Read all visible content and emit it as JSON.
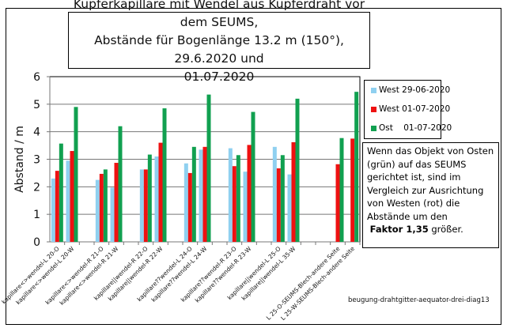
{
  "chart_data": {
    "type": "bar",
    "title": [
      "Kupferkapillare mit Wendel aus Kupferdraht vor dem SEUMS,",
      "Abstände für Bogenlänge 13.2 m (150°), 29.6.2020 und",
      "01.07.2020"
    ],
    "xlabel": "",
    "ylabel": "Abstand / m",
    "ylim": [
      0,
      6
    ],
    "yticks": [
      "0",
      "1",
      "2",
      "3",
      "4",
      "5",
      "6"
    ],
    "grid": true,
    "legend_position": "right",
    "categories": [
      "kapillare<>wendel-L 20-O",
      "kapillare<>wendel-L 20-W",
      "",
      "kapillare<>wendel-R 21-O",
      "kapillare<>wendel-R 21-W",
      "",
      "kapillare||wendel-R 22-O",
      "kapillare||wendel-R 22-W",
      "",
      "kapillare??wendel-L 24-O",
      "kapillare??wendel-L 24-W",
      "",
      "kapillare??wendel-R 23-O",
      "kapillare??wendel-R 23-W",
      "",
      "kapillare||wendel-L 25-O",
      "kapillare||wendel-L 35-W",
      "",
      "",
      "L 25-O-SEUMS-Blech-andere Seite",
      "L 25-W-SEUMS-Blech-andere Seite"
    ],
    "series": [
      {
        "name": "West 29-06-2020",
        "color": "#8fd0f0",
        "values": [
          2.3,
          2.95,
          null,
          2.25,
          1.97,
          null,
          2.63,
          3.1,
          null,
          2.85,
          3.35,
          null,
          3.4,
          2.55,
          null,
          3.45,
          2.45,
          null,
          null,
          null,
          null
        ]
      },
      {
        "name": "West 01-07-2020",
        "color": "#ee1111",
        "values": [
          2.58,
          3.3,
          null,
          2.47,
          2.87,
          null,
          2.63,
          3.6,
          null,
          2.5,
          3.45,
          null,
          2.75,
          3.52,
          null,
          2.67,
          3.62,
          null,
          null,
          2.82,
          3.75
        ]
      },
      {
        "name": "Ost    01-07-2020",
        "color": "#11a050",
        "values": [
          3.57,
          4.9,
          null,
          2.63,
          4.2,
          null,
          3.17,
          4.85,
          null,
          3.45,
          5.35,
          null,
          3.15,
          4.72,
          null,
          3.15,
          5.2,
          null,
          null,
          3.77,
          5.45
        ]
      }
    ]
  },
  "note": {
    "lines": [
      "Wenn das Objekt von Osten",
      "(grün) auf das SEUMS",
      "gerichtet ist, sind im",
      "Vergleich zur Ausrichtung",
      "von Westen (rot) die",
      "Abstände um den"
    ],
    "bold": "Faktor 1,35",
    "tail": " größer."
  },
  "footer": "beugung-drahtgitter-aequator-drei-diag13"
}
